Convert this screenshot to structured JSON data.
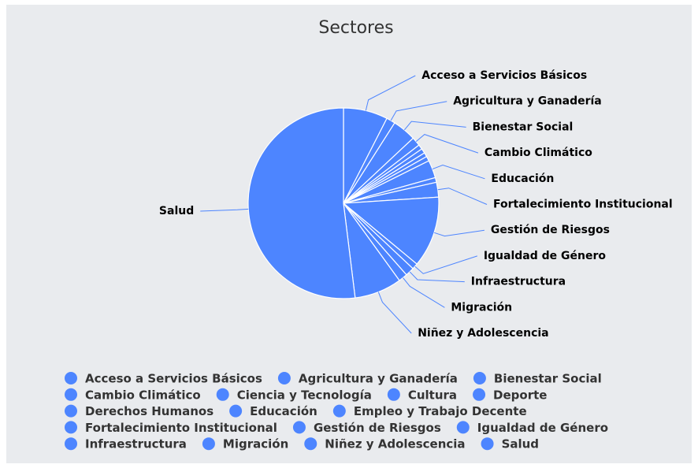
{
  "chart_data": {
    "type": "pie",
    "title": "Sectores",
    "color": "#4d85ff",
    "categories": [
      "Acceso a Servicios Básicos",
      "Agricultura y Ganadería",
      "Bienestar Social",
      "Cambio Climático",
      "Ciencia y Tecnología",
      "Cultura",
      "Deporte",
      "Derechos Humanos",
      "Educación",
      "Empleo y Trabajo Decente",
      "Fortalecimiento Institucional",
      "Gestión de Riesgos",
      "Igualdad de Género",
      "Infraestructura",
      "Migración",
      "Niñez y Adolescencia",
      "Salud"
    ],
    "values": [
      7.5,
      1.5,
      4,
      1.5,
      0.8,
      0.8,
      0.7,
      0.8,
      3,
      0.8,
      2.5,
      12,
      1,
      1.5,
      1.5,
      8,
      51.8
    ],
    "legend": "bottom"
  }
}
